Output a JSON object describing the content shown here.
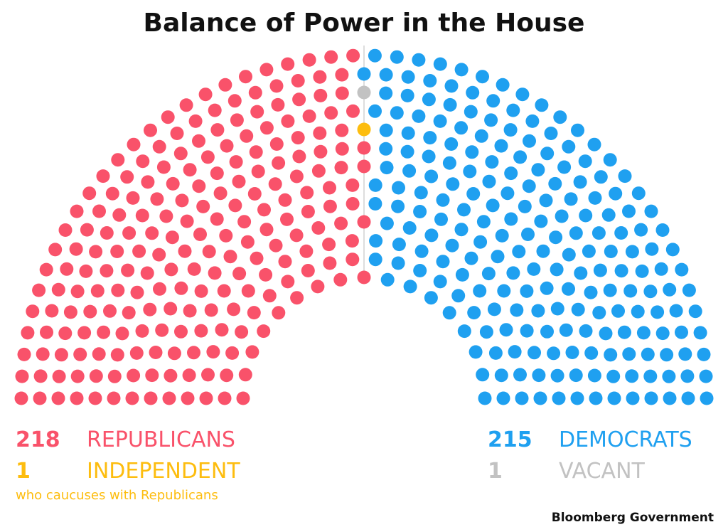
{
  "chart_data": {
    "type": "parliament",
    "title": "Balance of Power in the House",
    "series": [
      {
        "name": "REPUBLICANS",
        "color": "#f9526a",
        "value": 218
      },
      {
        "name": "INDEPENDENT",
        "color": "#fdbd0f",
        "value": 1,
        "note": "who caucuses with Republicans"
      },
      {
        "name": "VACANT",
        "color": "#c2c2c2",
        "value": 1
      },
      {
        "name": "DEMOCRATS",
        "color": "#1fa0f0",
        "value": 215
      }
    ],
    "source": "Bloomberg Government"
  }
}
